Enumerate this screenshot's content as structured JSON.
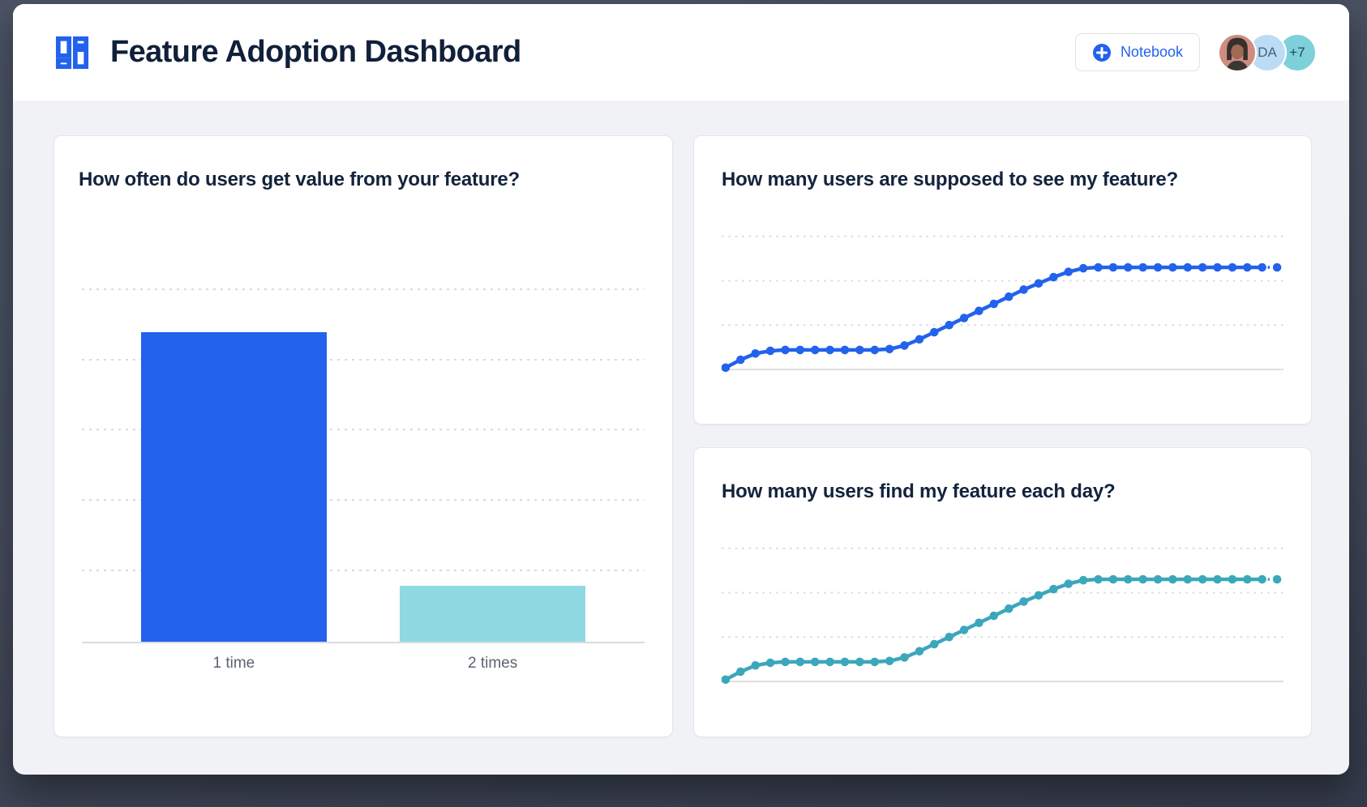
{
  "window": {
    "backdrop_color": "#454C5C",
    "surface_color": "#F1F2F6"
  },
  "header": {
    "title": "Feature Adoption Dashboard",
    "logo_color": "#2262EC",
    "notebook_button": {
      "label": "Notebook",
      "icon": "plus-icon",
      "accent": "#2262EC"
    },
    "avatars": [
      {
        "kind": "photo",
        "bg": "#D08D7F"
      },
      {
        "kind": "initials",
        "label": "DA",
        "bg": "#BCDCF5",
        "fg": "#44607C"
      },
      {
        "kind": "overflow-count",
        "label": "+7",
        "bg": "#7ED0DA",
        "fg": "#27454F"
      }
    ]
  },
  "chart_data": [
    {
      "type": "bar",
      "title": "How often do users get value from your feature?",
      "categories": [
        "1 time",
        "2 times"
      ],
      "values": [
        88,
        16
      ],
      "bar_colors": [
        "#2262EC",
        "#8ED9E2"
      ],
      "ylim": [
        0,
        105
      ],
      "gridlines": [
        20,
        40,
        60,
        80,
        100
      ],
      "band_centers_pct": [
        27,
        73
      ],
      "bar_width_pct": 33,
      "xlabel": "",
      "ylabel": "",
      "legend": "none",
      "grid_style": "dotted-horizontal"
    },
    {
      "type": "line",
      "title": "How many users are supposed to see my feature?",
      "color": "#2262EC",
      "ylim": [
        0,
        84
      ],
      "gridlines": [
        25,
        50,
        75
      ],
      "x": "time (days, unlabeled)",
      "values": [
        1,
        5.5,
        9,
        10.5,
        11,
        11,
        11,
        11,
        11,
        11,
        11,
        11.5,
        13.5,
        17,
        21,
        25,
        29,
        33,
        37,
        41,
        45,
        48.5,
        52,
        55,
        57,
        57.5,
        57.5,
        57.5,
        57.5,
        57.5,
        57.5,
        57.5,
        57.5,
        57.5,
        57.5,
        57.5,
        57.5,
        57.5
      ],
      "markers": "filled-circles",
      "last_segment_dashed": true,
      "legend": "none",
      "grid_style": "dotted-horizontal"
    },
    {
      "type": "line",
      "title": "How many users find my feature each day?",
      "color": "#3BA7BB",
      "ylim": [
        0,
        84
      ],
      "gridlines": [
        25,
        50,
        75
      ],
      "x": "time (days, unlabeled)",
      "values": [
        1,
        5.5,
        9,
        10.5,
        11,
        11,
        11,
        11,
        11,
        11,
        11,
        11.5,
        13.5,
        17,
        21,
        25,
        29,
        33,
        37,
        41,
        45,
        48.5,
        52,
        55,
        57,
        57.5,
        57.5,
        57.5,
        57.5,
        57.5,
        57.5,
        57.5,
        57.5,
        57.5,
        57.5,
        57.5,
        57.5,
        57.5
      ],
      "markers": "filled-circles",
      "last_segment_dashed": true,
      "legend": "none",
      "grid_style": "dotted-horizontal"
    }
  ]
}
